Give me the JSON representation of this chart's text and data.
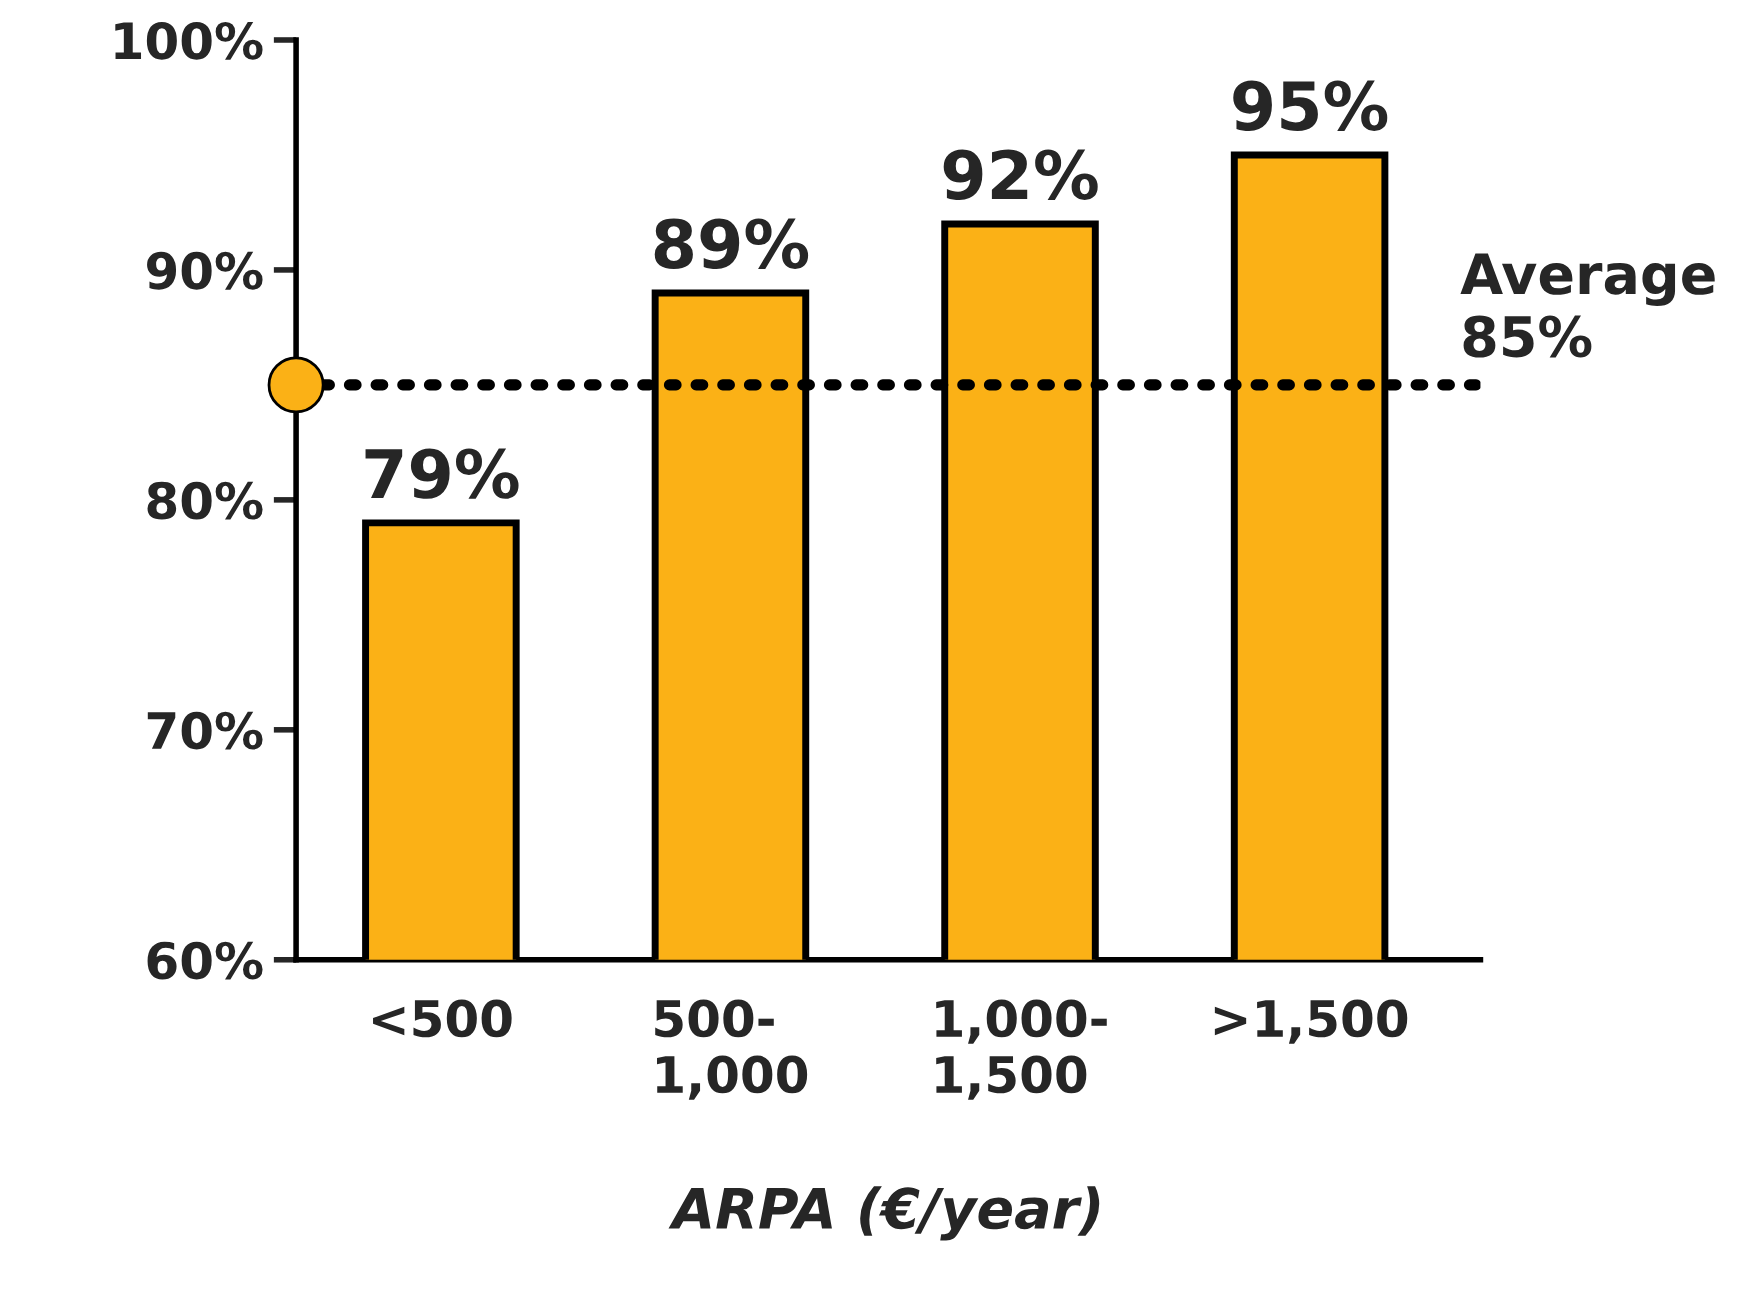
{
  "chart_data": {
    "type": "bar",
    "xlabel": "ARPA (€/year)",
    "categories": [
      "<500",
      "500-\n1,000",
      "1,000-\n1,500",
      ">1,500"
    ],
    "values": [
      79,
      89,
      92,
      95
    ],
    "color": "#fbb116",
    "value_labels": [
      "79%",
      "89%",
      "92%",
      "95%"
    ],
    "ylim": [
      60,
      100
    ],
    "yticks": [
      {
        "value": 60,
        "label": "60%"
      },
      {
        "value": 70,
        "label": "70%"
      },
      {
        "value": 80,
        "label": "80%"
      },
      {
        "value": 90,
        "label": "90%"
      },
      {
        "value": 100,
        "label": "100%"
      }
    ],
    "ref_lines": [
      {
        "axis": "y",
        "value": 85,
        "label": "Average\n85%",
        "line_style": "dotted"
      }
    ],
    "grid": false,
    "legend": false
  }
}
